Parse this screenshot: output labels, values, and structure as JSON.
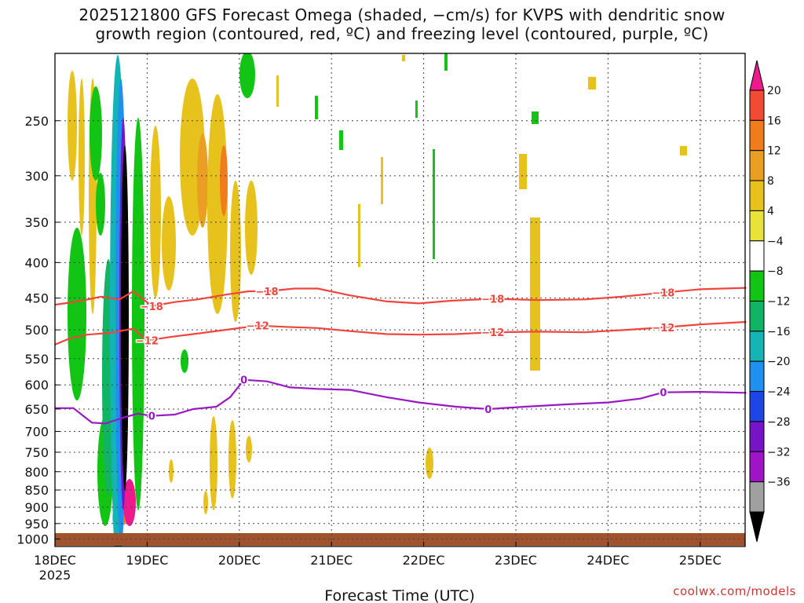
{
  "title_line1": "2025121800 GFS Forecast Omega (shaded, −cm/s) for KVPS with dendritic snow",
  "title_line2": "growth region (contoured, red, ºC) and freezing level (contoured, purple, ºC)",
  "credit": "coolwx.com/models",
  "chart_data": {
    "type": "heatmap",
    "xlabel": "Forecast Time (UTC)",
    "ylabel": "",
    "x_ticks": [
      "18DEC",
      "19DEC",
      "20DEC",
      "21DEC",
      "22DEC",
      "23DEC",
      "24DEC",
      "25DEC"
    ],
    "x_tick_sub": "2025",
    "x_range_days": [
      0,
      7.5
    ],
    "y_ticks": [
      250,
      300,
      350,
      400,
      450,
      500,
      550,
      600,
      650,
      700,
      750,
      800,
      850,
      900,
      950,
      1000
    ],
    "y_range_hPa": [
      200,
      1025
    ],
    "y_scale": "log",
    "grid": true,
    "colorbar": {
      "labels": [
        "20",
        "16",
        "12",
        "8",
        "4",
        "−4",
        "−8",
        "−12",
        "−16",
        "−20",
        "−24",
        "−28",
        "−32",
        "−36"
      ],
      "colors": [
        "#ec1a8c",
        "#f24a33",
        "#f07c1c",
        "#eb9f22",
        "#e8c21c",
        "#e8e23a",
        "#ffffff",
        "#12c414",
        "#10b464",
        "#14b4b4",
        "#1e90f0",
        "#1e46e6",
        "#7814c8",
        "#a014c8",
        "#a0a0a0",
        "#000000"
      ]
    },
    "contours": [
      {
        "label": "−18",
        "color": "#f0443c",
        "points": [
          [
            0,
            460
          ],
          [
            0.25,
            455
          ],
          [
            0.5,
            448
          ],
          [
            0.7,
            452
          ],
          [
            0.85,
            440
          ],
          [
            1.05,
            462
          ],
          [
            1.3,
            456
          ],
          [
            1.55,
            452
          ],
          [
            1.85,
            445
          ],
          [
            2.1,
            440
          ],
          [
            2.3,
            440
          ],
          [
            2.6,
            436
          ],
          [
            2.85,
            436
          ],
          [
            3.2,
            446
          ],
          [
            3.6,
            455
          ],
          [
            3.95,
            458
          ],
          [
            4.3,
            454
          ],
          [
            4.75,
            451
          ],
          [
            5.25,
            453
          ],
          [
            5.75,
            452
          ],
          [
            6.15,
            448
          ],
          [
            6.6,
            442
          ],
          [
            7,
            437
          ],
          [
            7.5,
            435
          ]
        ]
      },
      {
        "label": "−12",
        "color": "#f0443c",
        "points": [
          [
            0,
            525
          ],
          [
            0.15,
            515
          ],
          [
            0.35,
            508
          ],
          [
            0.6,
            505
          ],
          [
            0.85,
            498
          ],
          [
            1.0,
            518
          ],
          [
            1.25,
            512
          ],
          [
            1.5,
            507
          ],
          [
            1.85,
            500
          ],
          [
            2.2,
            493
          ],
          [
            2.5,
            495
          ],
          [
            2.85,
            497
          ],
          [
            3.2,
            502
          ],
          [
            3.6,
            507
          ],
          [
            3.95,
            508
          ],
          [
            4.35,
            507
          ],
          [
            4.75,
            504
          ],
          [
            5.25,
            503
          ],
          [
            5.75,
            504
          ],
          [
            6.2,
            500
          ],
          [
            6.6,
            496
          ],
          [
            7,
            491
          ],
          [
            7.5,
            487
          ]
        ]
      },
      {
        "label": "0",
        "color": "#9a18c4",
        "points": [
          [
            0,
            648
          ],
          [
            0.2,
            648
          ],
          [
            0.4,
            680
          ],
          [
            0.55,
            682
          ],
          [
            0.75,
            668
          ],
          [
            0.9,
            660
          ],
          [
            1.05,
            665
          ],
          [
            1.3,
            662
          ],
          [
            1.5,
            650
          ],
          [
            1.75,
            645
          ],
          [
            1.9,
            625
          ],
          [
            2.05,
            590
          ],
          [
            2.3,
            593
          ],
          [
            2.55,
            605
          ],
          [
            2.85,
            608
          ],
          [
            3.2,
            610
          ],
          [
            3.6,
            625
          ],
          [
            3.95,
            636
          ],
          [
            4.35,
            645
          ],
          [
            4.7,
            650
          ],
          [
            5.1,
            645
          ],
          [
            5.55,
            640
          ],
          [
            6.0,
            636
          ],
          [
            6.35,
            628
          ],
          [
            6.6,
            615
          ],
          [
            7.0,
            614
          ],
          [
            7.5,
            616
          ]
        ]
      }
    ]
  }
}
